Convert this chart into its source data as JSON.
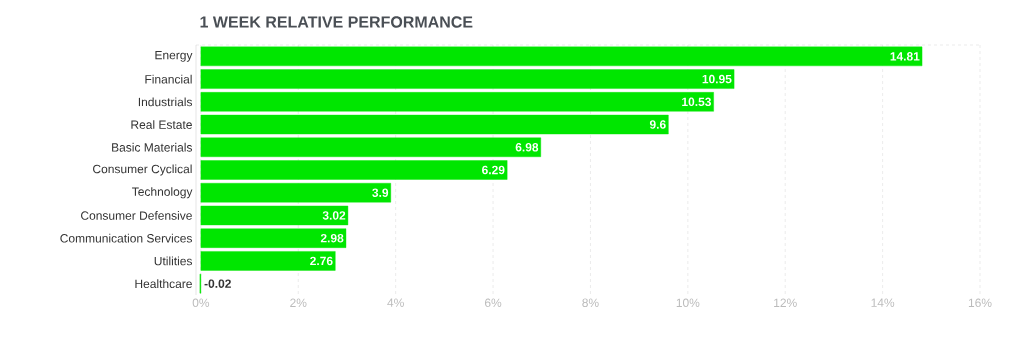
{
  "chart_data": {
    "type": "bar",
    "orientation": "horizontal",
    "title": "1 WEEK RELATIVE PERFORMANCE",
    "categories": [
      "Energy",
      "Financial",
      "Industrials",
      "Real Estate",
      "Basic Materials",
      "Consumer Cyclical",
      "Technology",
      "Consumer Defensive",
      "Communication Services",
      "Utilities",
      "Healthcare"
    ],
    "values": [
      14.81,
      10.95,
      10.53,
      9.6,
      6.98,
      6.29,
      3.9,
      3.02,
      2.98,
      2.76,
      -0.02
    ],
    "color": "#00e600",
    "xlim": [
      -0.1,
      16
    ],
    "xticks": [
      {
        "value": 0,
        "label": "0%"
      },
      {
        "value": 2,
        "label": "2%"
      },
      {
        "value": 4,
        "label": "4%"
      },
      {
        "value": 6,
        "label": "6%"
      },
      {
        "value": 8,
        "label": "8%"
      },
      {
        "value": 10,
        "label": "10%"
      },
      {
        "value": 12,
        "label": "12%"
      },
      {
        "value": 14,
        "label": "14%"
      },
      {
        "value": 16,
        "label": "16%"
      }
    ],
    "grid": "x",
    "data_labels": true
  }
}
